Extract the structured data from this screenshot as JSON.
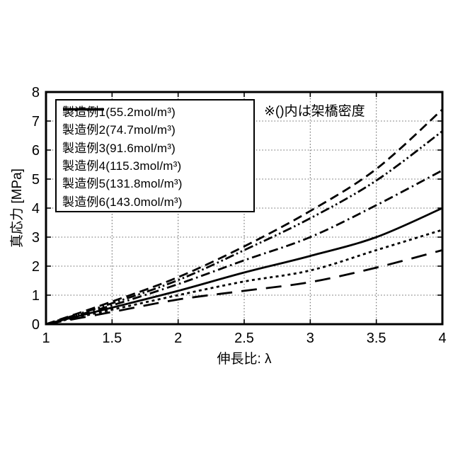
{
  "colors": {
    "line": "#000000",
    "grid": "#6e6e6e",
    "background": "#ffffff",
    "legend_border": "#000000"
  },
  "chart_data": {
    "type": "line",
    "title": "",
    "xlabel": "伸長比: λ",
    "ylabel": "真応力 [MPa]",
    "xlim": [
      1,
      4
    ],
    "ylim": [
      0,
      8
    ],
    "x_ticks": [
      "1",
      "1.5",
      "2",
      "2.5",
      "3",
      "3.5",
      "4"
    ],
    "y_ticks": [
      "0",
      "1",
      "2",
      "3",
      "4",
      "5",
      "6",
      "7",
      "8"
    ],
    "grid": "dotted",
    "legend_position": "upper-left",
    "legend_note": "※()内は架橋密度",
    "x": [
      1,
      1.5,
      2,
      2.5,
      3,
      3.5,
      4
    ],
    "series": [
      {
        "name": "example-1",
        "label": "製造例1(55.2mol/m³)",
        "crosslink_density": "55.2mol/m³",
        "style": "long-dash",
        "color": "#000000",
        "values": [
          0,
          0.42,
          0.85,
          1.15,
          1.45,
          1.95,
          2.55
        ]
      },
      {
        "name": "example-2",
        "label": "製造例2(74.7mol/m³)",
        "crosslink_density": "74.7mol/m³",
        "style": "dotted",
        "color": "#000000",
        "values": [
          0,
          0.5,
          1.0,
          1.47,
          1.85,
          2.55,
          3.25
        ]
      },
      {
        "name": "example-3",
        "label": "製造例3(91.6mol/m³)",
        "crosslink_density": "91.6mol/m³",
        "style": "solid",
        "color": "#000000",
        "values": [
          0,
          0.57,
          1.15,
          1.78,
          2.35,
          3.0,
          4.0
        ]
      },
      {
        "name": "example-4",
        "label": "製造例4(115.3mol/m³)",
        "crosslink_density": "115.3mol/m³",
        "style": "dash-dot",
        "color": "#000000",
        "values": [
          0,
          0.65,
          1.38,
          2.2,
          3.0,
          4.1,
          5.3
        ]
      },
      {
        "name": "example-5",
        "label": "製造例5(131.8mol/m³)",
        "crosslink_density": "131.8mol/m³",
        "style": "dash-dot-dot",
        "color": "#000000",
        "values": [
          0,
          0.72,
          1.52,
          2.55,
          3.65,
          4.95,
          6.65
        ]
      },
      {
        "name": "example-6",
        "label": "製造例6(143.0mol/m³)",
        "crosslink_density": "143.0mol/m³",
        "style": "medium-dash",
        "color": "#000000",
        "values": [
          0,
          0.78,
          1.62,
          2.68,
          3.9,
          5.35,
          7.4
        ]
      }
    ]
  }
}
